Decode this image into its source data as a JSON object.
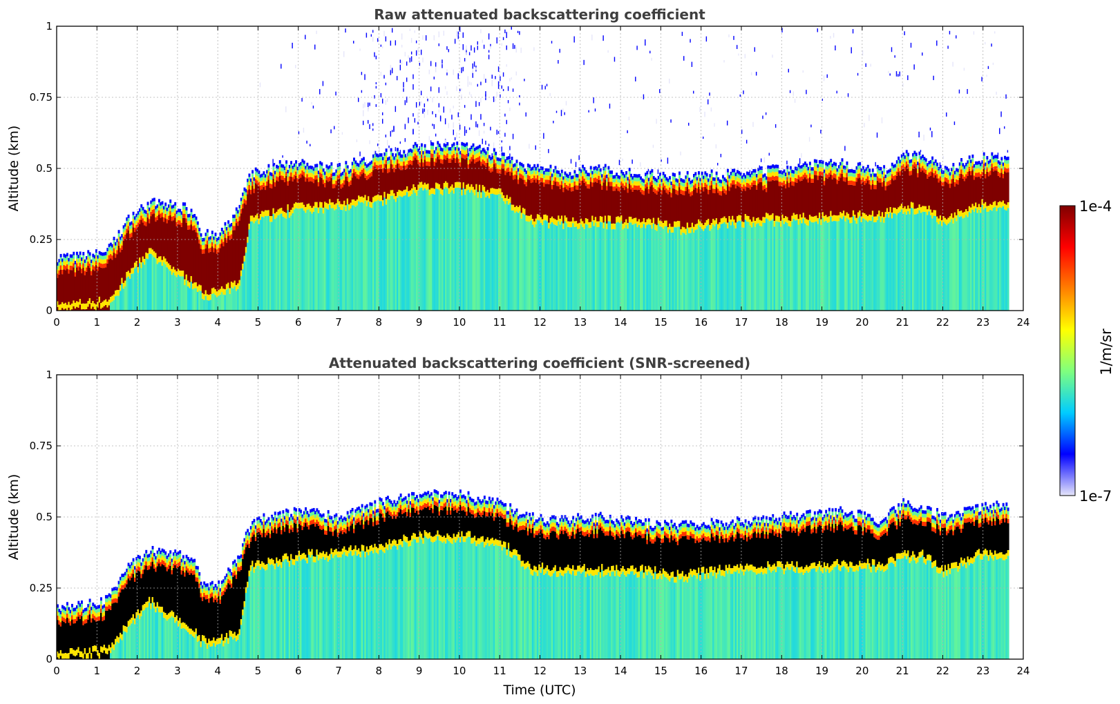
{
  "colormap": [
    "#e6e6fa",
    "#0000ff",
    "#00ccff",
    "#7fff7f",
    "#ffff00",
    "#ff7f00",
    "#ff0000",
    "#7f0000"
  ],
  "chart_data": [
    {
      "type": "heatmap",
      "title": "Raw attenuated backscattering coefficient",
      "xlabel": "",
      "ylabel": "Altitude (km)",
      "xlim": [
        0,
        24
      ],
      "ylim": [
        0,
        1
      ],
      "x_ticks": [
        "0",
        "1",
        "2",
        "3",
        "4",
        "5",
        "6",
        "7",
        "8",
        "9",
        "10",
        "11",
        "12",
        "13",
        "14",
        "15",
        "16",
        "17",
        "18",
        "19",
        "20",
        "21",
        "22",
        "23",
        "24"
      ],
      "y_ticks": [
        "0",
        "0.25",
        "0.5",
        "0.75",
        "1"
      ],
      "grid": true,
      "data_end_hour": 23.6,
      "layer_top_km": {
        "hour": [
          0,
          0.5,
          1.0,
          1.3,
          1.8,
          2.3,
          3.0,
          3.4,
          3.6,
          4.0,
          4.5,
          4.8,
          5.5,
          6.0,
          7.0,
          8.0,
          9.0,
          10.0,
          11.0,
          11.7,
          12.5,
          13.5,
          14.5,
          15.5,
          16.5,
          17.5,
          18.5,
          19.5,
          20.5,
          21.0,
          21.5,
          22.0,
          23.0,
          23.6
        ],
        "value": [
          0.19,
          0.19,
          0.2,
          0.22,
          0.33,
          0.38,
          0.37,
          0.35,
          0.27,
          0.26,
          0.36,
          0.48,
          0.51,
          0.52,
          0.5,
          0.55,
          0.58,
          0.58,
          0.55,
          0.5,
          0.49,
          0.5,
          0.48,
          0.47,
          0.48,
          0.49,
          0.51,
          0.52,
          0.49,
          0.55,
          0.54,
          0.5,
          0.54,
          0.54
        ]
      },
      "layer_bottom_km": {
        "hour": [
          0,
          1.3,
          1.8,
          2.3,
          3.0,
          3.4,
          3.6,
          4.0,
          4.5,
          4.8,
          5.5,
          6.0,
          7.0,
          8.0,
          9.0,
          10.0,
          11.0,
          11.7,
          12.5,
          13.5,
          14.5,
          15.5,
          16.5,
          17.5,
          18.5,
          19.5,
          20.5,
          21.0,
          21.5,
          22.0,
          23.0,
          23.6
        ],
        "value": [
          0.0,
          0.02,
          0.12,
          0.19,
          0.12,
          0.08,
          0.05,
          0.05,
          0.08,
          0.31,
          0.33,
          0.35,
          0.36,
          0.38,
          0.42,
          0.42,
          0.4,
          0.31,
          0.3,
          0.3,
          0.3,
          0.28,
          0.3,
          0.31,
          0.31,
          0.32,
          0.32,
          0.35,
          0.35,
          0.3,
          0.36,
          0.36
        ]
      }
    },
    {
      "type": "heatmap",
      "title": "Attenuated backscattering coefficient (SNR-screened)",
      "xlabel": "Time (UTC)",
      "ylabel": "Altitude (km)",
      "xlim": [
        0,
        24
      ],
      "ylim": [
        0,
        1
      ],
      "x_ticks": [
        "0",
        "1",
        "2",
        "3",
        "4",
        "5",
        "6",
        "7",
        "8",
        "9",
        "10",
        "11",
        "12",
        "13",
        "14",
        "15",
        "16",
        "17",
        "18",
        "19",
        "20",
        "21",
        "22",
        "23",
        "24"
      ],
      "y_ticks": [
        "0",
        "0.25",
        "0.5",
        "0.75",
        "1"
      ],
      "grid": true,
      "data_end_hour": 23.6,
      "screened_color": "#000000"
    }
  ],
  "colorbar": {
    "label": "1/m/sr",
    "max_label": "1e-4",
    "min_label": "1e-7",
    "scale": "log",
    "range": [
      1e-07,
      0.0001
    ]
  }
}
